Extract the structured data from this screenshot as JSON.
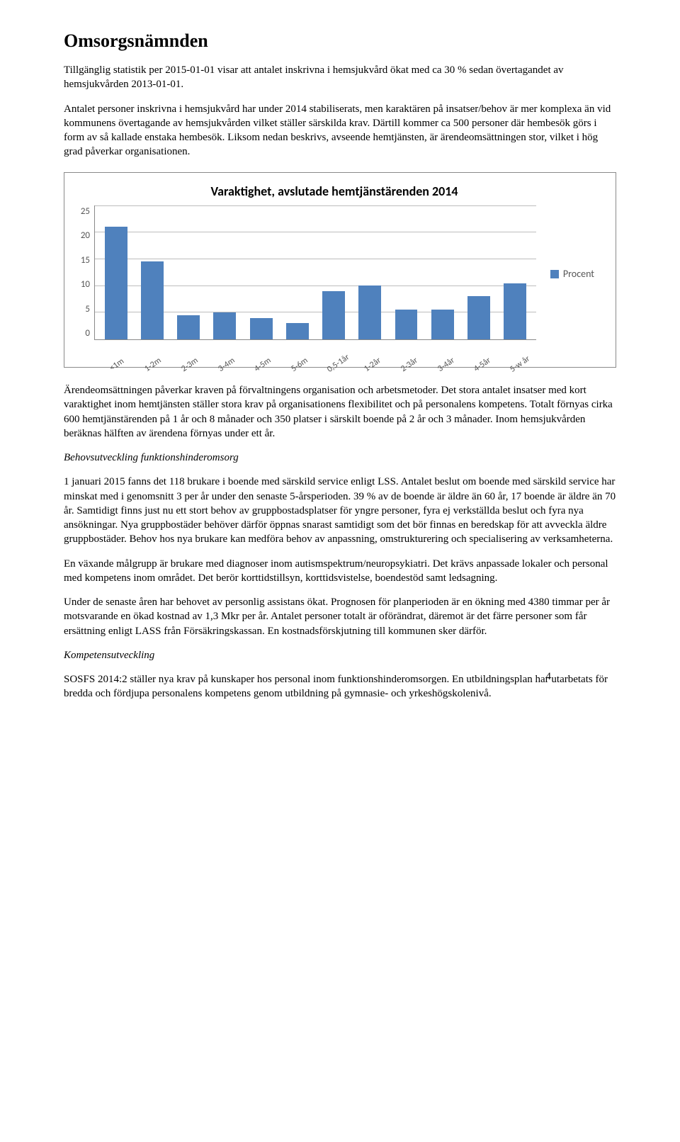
{
  "page": {
    "title": "Omsorgsnämnden",
    "number": "4"
  },
  "para": {
    "intro1": "Tillgänglig statistik per 2015-01-01 visar att antalet inskrivna i hemsjukvård ökat med ca 30 % sedan övertagandet av hemsjukvården 2013-01-01.",
    "intro2": "Antalet personer inskrivna i hemsjukvård har under 2014 stabiliserats, men karaktären på insatser/behov är mer komplexa än vid kommunens övertagande av hemsjukvården vilket ställer särskilda krav. Därtill kommer ca 500 personer där hembesök görs i form av så kallade enstaka hembesök. Liksom nedan beskrivs, avseende hemtjänsten, är ärendeomsättningen stor, vilket i hög grad påverkar organisationen.",
    "after_chart": "Ärendeomsättningen påverkar kraven på förvaltningens organisation och arbetsmetoder. Det stora antalet insatser med kort varaktighet inom hemtjänsten ställer stora krav på organisationens flexibilitet och på personalens kompetens. Totalt förnyas cirka 600 hemtjänstärenden på 1 år och 8 månader och 350 platser i särskilt boende på 2 år och 3 månader. Inom hemsjukvården beräknas hälften av ärendena förnyas under ett år.",
    "heading2": "Behovsutveckling funktionshinderomsorg",
    "body2a": "1 januari 2015 fanns det 118 brukare i boende med särskild service enligt LSS. Antalet beslut om boende med särskild service har minskat med i genomsnitt 3 per år under den senaste 5-årsperioden. 39 % av de boende är äldre än 60 år, 17 boende är äldre än 70 år. Samtidigt finns just nu ett stort behov av gruppbostadsplatser för yngre personer, fyra ej verkställda beslut och fyra nya ansökningar. Nya gruppbostäder behöver därför öppnas snarast samtidigt som det bör finnas en beredskap för att avveckla äldre gruppbostäder. Behov hos nya brukare kan medföra behov av anpassning, omstrukturering och specialisering av verksamheterna.",
    "body2b": "En växande målgrupp är brukare med diagnoser inom autismspektrum/neuropsykiatri. Det krävs anpassade lokaler och personal med kompetens inom området. Det berör korttidstillsyn, korttidsvistelse, boendestöd samt ledsagning.",
    "body2c": "Under de senaste åren har behovet av personlig assistans ökat. Prognosen för planperioden är en ökning med 4380 timmar per år motsvarande en ökad kostnad av 1,3 Mkr per år. Antalet personer totalt är oförändrat, däremot är det färre personer som får ersättning enligt LASS från Försäkringskassan. En kostnadsförskjutning till kommunen sker därför.",
    "heading3": "Kompetensutveckling",
    "body3": "SOSFS 2014:2 ställer nya krav på kunskaper hos personal inom funktionshinderomsorgen. En utbildningsplan har utarbetats för bredda och fördjupa personalens kompetens genom utbildning på gymnasie- och yrkeshögskolenivå."
  },
  "chart": {
    "type": "bar",
    "title": "Varaktighet, avslutade hemtjänstärenden 2014",
    "categories": [
      "<1m",
      "1-2m",
      "2-3m",
      "3-4m",
      "4-5m",
      "5-6m",
      "0,5-1år",
      "1-2år",
      "2-3år",
      "3-4år",
      "4-5år",
      "5-w år"
    ],
    "values": [
      21,
      14.5,
      4.5,
      5,
      4,
      3,
      9,
      10,
      5.5,
      5.5,
      8,
      10.5
    ],
    "series_color": "#4f81bd",
    "series_label": "Procent",
    "ylim": [
      0,
      25
    ],
    "ytick_step": 5,
    "yticks": [
      "25",
      "20",
      "15",
      "10",
      "5",
      "0"
    ],
    "grid_color": "#bdbdbd",
    "axis_color": "#888888",
    "background_color": "#ffffff",
    "label_fontsize": 13
  }
}
